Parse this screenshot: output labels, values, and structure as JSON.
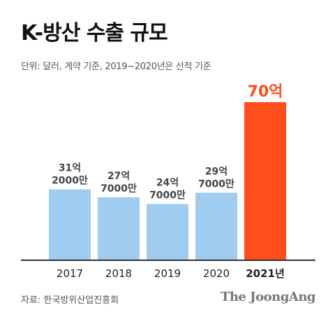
{
  "title": "K-방산 수출 규모",
  "subtitle": "단위: 달러, 계약 기준, 2019~2020년은 선적 기준",
  "source": "자료: 한국방위산업진흥회",
  "logo": "The JoongAng",
  "colors": {
    "bar": "#9fccef",
    "highlight": "#ff4d1c",
    "axis": "#333333",
    "label": "#444444"
  },
  "chart_data": {
    "type": "bar",
    "categories": [
      "2017",
      "2018",
      "2019",
      "2020",
      "2021년"
    ],
    "values": [
      31.2,
      27.7,
      24.7,
      29.7,
      70
    ],
    "data_labels": [
      [
        "31억",
        "2000만"
      ],
      [
        "27억",
        "7000만"
      ],
      [
        "24억",
        "7000만"
      ],
      [
        "29억",
        "7000만"
      ],
      [
        "70억"
      ]
    ],
    "highlight_index": 4,
    "ylim": [
      0,
      70
    ]
  }
}
